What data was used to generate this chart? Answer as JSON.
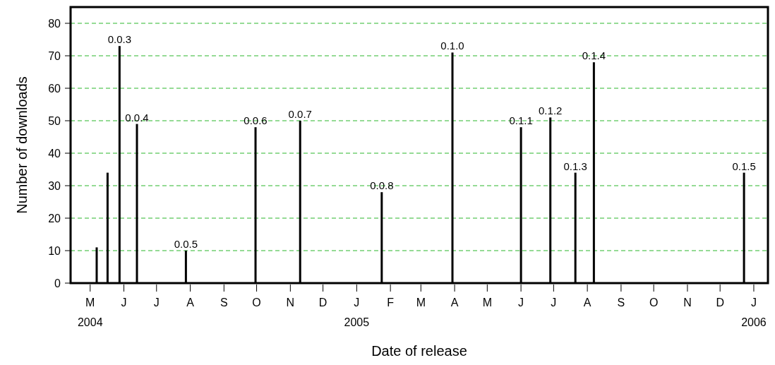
{
  "chart_data": {
    "type": "bar",
    "xlabel": "Date of release",
    "ylabel": "Number of downloads",
    "x": [
      "2004-05-07",
      "2004-05-17",
      "2004-05-28",
      "2004-06-13",
      "2004-07-28",
      "2004-09-30",
      "2004-11-10",
      "2005-01-24",
      "2005-03-30",
      "2005-06-01",
      "2005-06-28",
      "2005-07-21",
      "2005-08-07",
      "2005-12-23"
    ],
    "values": [
      11,
      34,
      73,
      49,
      10,
      48,
      50,
      28,
      71,
      48,
      51,
      34,
      68,
      34
    ],
    "value_labels": [
      null,
      null,
      "0.0.3",
      "0.0.4",
      "0.0.5",
      "0.0.6",
      "0.0.7",
      "0.0.8",
      "0.1.0",
      "0.1.1",
      "0.1.2",
      "0.1.3",
      "0.1.4",
      "0.1.5"
    ],
    "color": "#000000",
    "xlim": [
      "2004-04-13",
      "2006-01-14"
    ],
    "xticks": [
      {
        "value": "2004-05-01",
        "label": "M\n2004"
      },
      {
        "value": "2004-06-01",
        "label": "J"
      },
      {
        "value": "2004-07-01",
        "label": "J"
      },
      {
        "value": "2004-08-01",
        "label": "A"
      },
      {
        "value": "2004-09-01",
        "label": "S"
      },
      {
        "value": "2004-10-01",
        "label": "O"
      },
      {
        "value": "2004-11-01",
        "label": "N"
      },
      {
        "value": "2004-12-01",
        "label": "D"
      },
      {
        "value": "2005-01-01",
        "label": "J\n2005"
      },
      {
        "value": "2005-02-01",
        "label": "F"
      },
      {
        "value": "2005-03-01",
        "label": "M"
      },
      {
        "value": "2005-04-01",
        "label": "A"
      },
      {
        "value": "2005-05-01",
        "label": "M"
      },
      {
        "value": "2005-06-01",
        "label": "J"
      },
      {
        "value": "2005-07-01",
        "label": "J"
      },
      {
        "value": "2005-08-01",
        "label": "A"
      },
      {
        "value": "2005-09-01",
        "label": "S"
      },
      {
        "value": "2005-10-01",
        "label": "O"
      },
      {
        "value": "2005-11-01",
        "label": "N"
      },
      {
        "value": "2005-12-01",
        "label": "D"
      },
      {
        "value": "2006-01-01",
        "label": "J\n2006"
      }
    ],
    "ylim": [
      0,
      85
    ],
    "yticks": [
      0,
      10,
      20,
      30,
      40,
      50,
      60,
      70,
      80
    ],
    "grid": "y"
  }
}
